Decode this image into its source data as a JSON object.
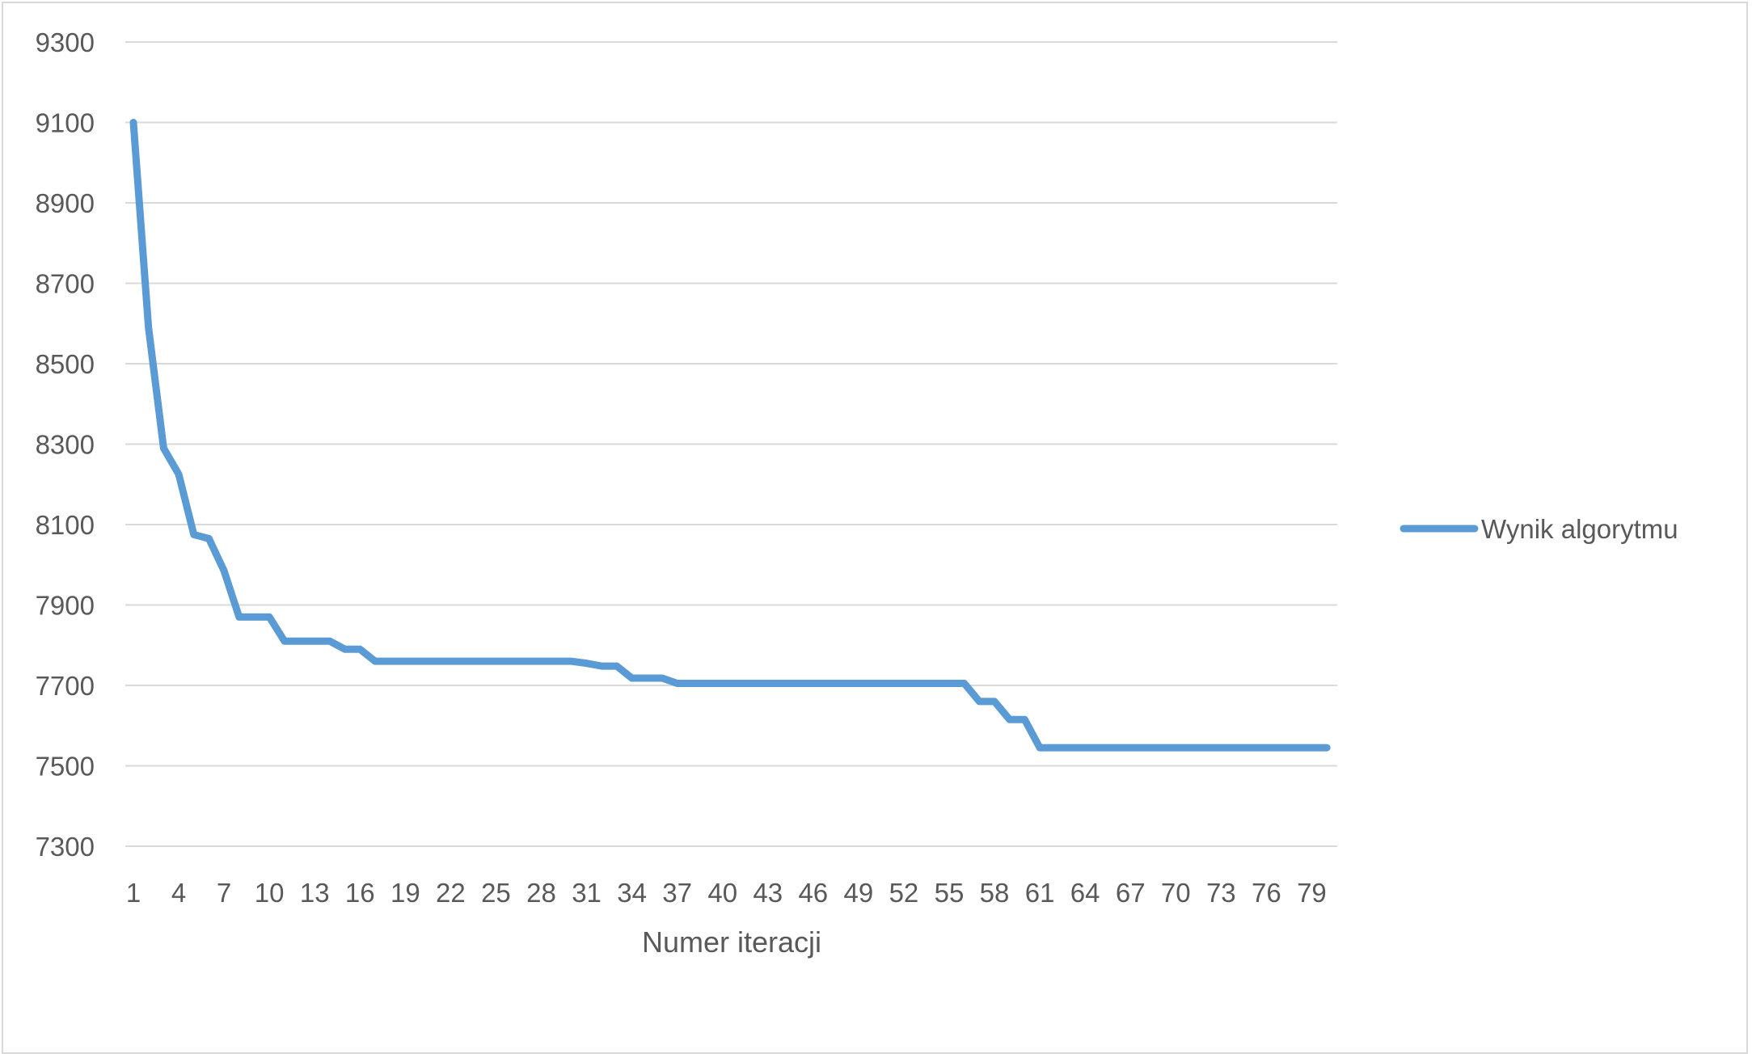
{
  "chart_data": {
    "type": "line",
    "title": "",
    "xlabel": "Numer iteracji",
    "ylabel": "",
    "ylim": [
      7300,
      9300
    ],
    "y_ticks": [
      7300,
      7500,
      7700,
      7900,
      8100,
      8300,
      8500,
      8700,
      8900,
      9100,
      9300
    ],
    "x_tick_labels": [
      "1",
      "4",
      "7",
      "10",
      "13",
      "16",
      "19",
      "22",
      "25",
      "28",
      "31",
      "34",
      "37",
      "40",
      "43",
      "46",
      "49",
      "52",
      "55",
      "58",
      "61",
      "64",
      "67",
      "70",
      "73",
      "76",
      "79"
    ],
    "grid": true,
    "legend_position": "right",
    "colors": {
      "series": "#5b9bd5",
      "grid": "#d9d9d9",
      "text": "#595959",
      "border": "#d9d9d9"
    },
    "x": [
      1,
      2,
      3,
      4,
      5,
      6,
      7,
      8,
      9,
      10,
      11,
      12,
      13,
      14,
      15,
      16,
      17,
      18,
      19,
      20,
      21,
      22,
      23,
      24,
      25,
      26,
      27,
      28,
      29,
      30,
      31,
      32,
      33,
      34,
      35,
      36,
      37,
      38,
      39,
      40,
      41,
      42,
      43,
      44,
      45,
      46,
      47,
      48,
      49,
      50,
      51,
      52,
      53,
      54,
      55,
      56,
      57,
      58,
      59,
      60,
      61,
      62,
      63,
      64,
      65,
      66,
      67,
      68,
      69,
      70,
      71,
      72,
      73,
      74,
      75,
      76,
      77,
      78,
      79,
      80
    ],
    "series": [
      {
        "name": "Wynik algorytmu",
        "values": [
          9100,
          8590,
          8290,
          8225,
          8075,
          8065,
          7985,
          7870,
          7870,
          7870,
          7810,
          7810,
          7810,
          7810,
          7790,
          7790,
          7760,
          7760,
          7760,
          7760,
          7760,
          7760,
          7760,
          7760,
          7760,
          7760,
          7760,
          7760,
          7760,
          7760,
          7755,
          7748,
          7748,
          7718,
          7718,
          7718,
          7705,
          7705,
          7705,
          7705,
          7705,
          7705,
          7705,
          7705,
          7705,
          7705,
          7705,
          7705,
          7705,
          7705,
          7705,
          7705,
          7705,
          7705,
          7705,
          7705,
          7660,
          7660,
          7615,
          7615,
          7545,
          7545,
          7545,
          7545,
          7545,
          7545,
          7545,
          7545,
          7545,
          7545,
          7545,
          7545,
          7545,
          7545,
          7545,
          7545,
          7545,
          7545,
          7545,
          7545
        ]
      }
    ]
  }
}
